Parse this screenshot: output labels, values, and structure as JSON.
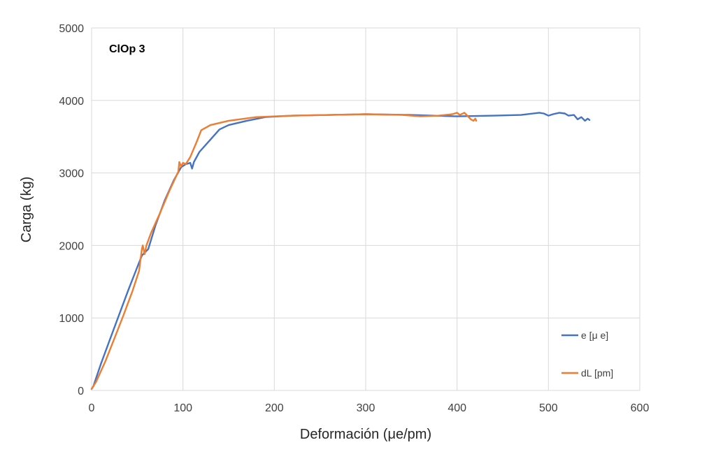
{
  "chart_data": {
    "type": "line",
    "title": "",
    "annotation": "ClOp 3",
    "xlabel": "Deformación (μe/pm)",
    "ylabel": "Carga (kg)",
    "xlim": [
      0,
      600
    ],
    "ylim": [
      0,
      5000
    ],
    "x_ticks": [
      "0",
      "100",
      "200",
      "300",
      "400",
      "500",
      "600"
    ],
    "y_ticks": [
      "0",
      "1000",
      "2000",
      "3000",
      "4000",
      "5000"
    ],
    "grid": true,
    "legend_position": "bottom-right",
    "series": [
      {
        "name": "e [μ e]",
        "color": "#4472c4",
        "points": [
          [
            0,
            20
          ],
          [
            2,
            60
          ],
          [
            10,
            360
          ],
          [
            20,
            700
          ],
          [
            30,
            1040
          ],
          [
            40,
            1380
          ],
          [
            50,
            1700
          ],
          [
            55,
            1860
          ],
          [
            58,
            1900
          ],
          [
            62,
            1950
          ],
          [
            70,
            2280
          ],
          [
            80,
            2620
          ],
          [
            90,
            2900
          ],
          [
            98,
            3080
          ],
          [
            103,
            3120
          ],
          [
            108,
            3140
          ],
          [
            110,
            3060
          ],
          [
            112,
            3150
          ],
          [
            118,
            3290
          ],
          [
            130,
            3460
          ],
          [
            140,
            3600
          ],
          [
            150,
            3660
          ],
          [
            170,
            3720
          ],
          [
            190,
            3770
          ],
          [
            220,
            3790
          ],
          [
            260,
            3800
          ],
          [
            300,
            3810
          ],
          [
            350,
            3800
          ],
          [
            400,
            3780
          ],
          [
            440,
            3790
          ],
          [
            470,
            3800
          ],
          [
            490,
            3830
          ],
          [
            495,
            3820
          ],
          [
            500,
            3790
          ],
          [
            505,
            3810
          ],
          [
            512,
            3830
          ],
          [
            518,
            3820
          ],
          [
            522,
            3790
          ],
          [
            528,
            3800
          ],
          [
            532,
            3740
          ],
          [
            536,
            3770
          ],
          [
            540,
            3720
          ],
          [
            543,
            3750
          ],
          [
            545,
            3730
          ]
        ]
      },
      {
        "name": "dL [pm]",
        "color": "#ed7d31",
        "points": [
          [
            0,
            20
          ],
          [
            5,
            120
          ],
          [
            15,
            400
          ],
          [
            25,
            720
          ],
          [
            35,
            1040
          ],
          [
            45,
            1380
          ],
          [
            52,
            1650
          ],
          [
            55,
            1950
          ],
          [
            56,
            2000
          ],
          [
            58,
            1880
          ],
          [
            60,
            2000
          ],
          [
            65,
            2170
          ],
          [
            75,
            2450
          ],
          [
            85,
            2750
          ],
          [
            95,
            3020
          ],
          [
            96,
            3150
          ],
          [
            98,
            3090
          ],
          [
            100,
            3140
          ],
          [
            103,
            3120
          ],
          [
            108,
            3220
          ],
          [
            115,
            3430
          ],
          [
            120,
            3590
          ],
          [
            130,
            3660
          ],
          [
            150,
            3720
          ],
          [
            180,
            3770
          ],
          [
            220,
            3790
          ],
          [
            260,
            3800
          ],
          [
            300,
            3810
          ],
          [
            340,
            3800
          ],
          [
            360,
            3780
          ],
          [
            380,
            3790
          ],
          [
            395,
            3810
          ],
          [
            400,
            3830
          ],
          [
            403,
            3800
          ],
          [
            408,
            3830
          ],
          [
            412,
            3780
          ],
          [
            415,
            3740
          ],
          [
            418,
            3720
          ],
          [
            420,
            3750
          ],
          [
            421,
            3720
          ]
        ]
      }
    ]
  }
}
